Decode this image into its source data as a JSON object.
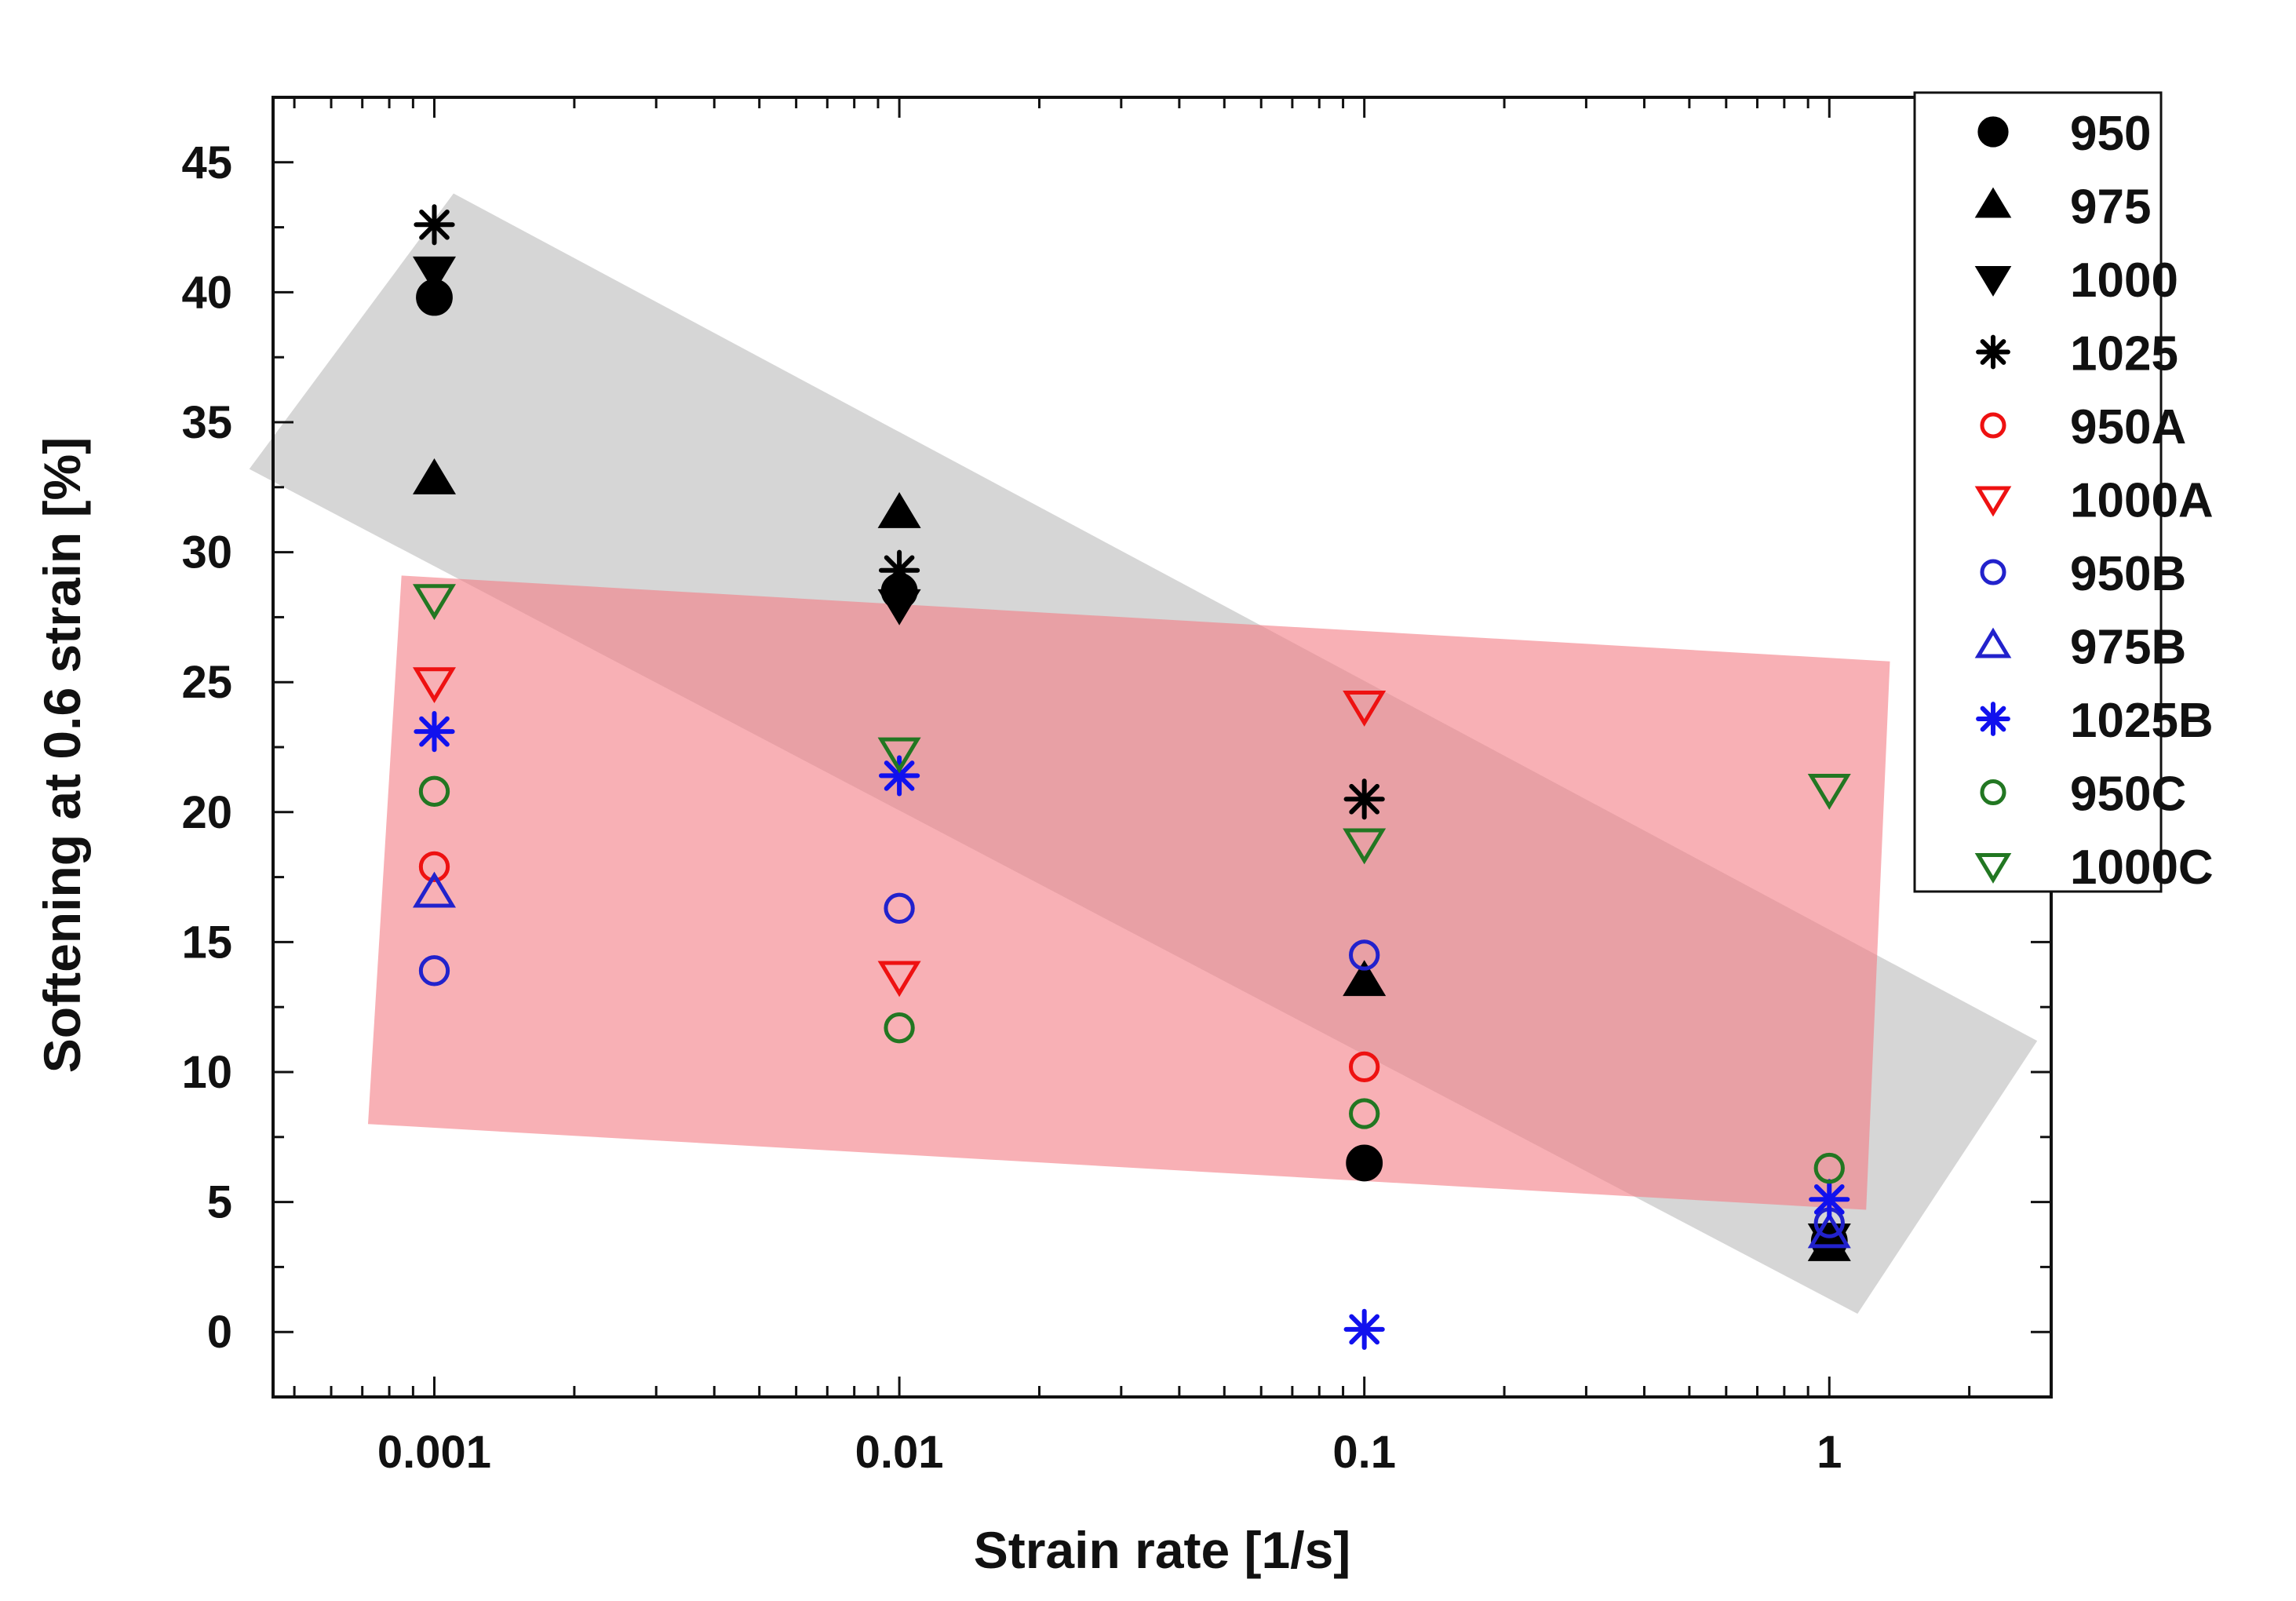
{
  "chart_data": {
    "type": "scatter",
    "title": "",
    "xlabel": "Strain rate [1/s]",
    "ylabel": "Softening at 0.6 strain [%]",
    "xscale": "log",
    "xlim": [
      0.00045,
      3
    ],
    "ylim": [
      -2.5,
      47.5
    ],
    "xticks": [
      {
        "value": 0.001,
        "label": "0.001"
      },
      {
        "value": 0.01,
        "label": "0.01"
      },
      {
        "value": 0.1,
        "label": "0.1"
      },
      {
        "value": 1,
        "label": "1"
      }
    ],
    "yticks": [
      {
        "value": 0,
        "label": "0"
      },
      {
        "value": 5,
        "label": "5"
      },
      {
        "value": 10,
        "label": "10"
      },
      {
        "value": 15,
        "label": "15"
      },
      {
        "value": 20,
        "label": "20"
      },
      {
        "value": 25,
        "label": "25"
      },
      {
        "value": 30,
        "label": "30"
      },
      {
        "value": 35,
        "label": "35"
      },
      {
        "value": 40,
        "label": "40"
      },
      {
        "value": 45,
        "label": "45"
      }
    ],
    "legend_position": "top-right",
    "series": [
      {
        "name": "950",
        "marker": "circle",
        "filled": true,
        "color": "#000000",
        "points": [
          {
            "x": 0.001,
            "y": 39.8
          },
          {
            "x": 0.01,
            "y": 28.5
          },
          {
            "x": 0.1,
            "y": 6.5
          },
          {
            "x": 1,
            "y": 3.5
          }
        ]
      },
      {
        "name": "975",
        "marker": "triangle-up",
        "filled": true,
        "color": "#000000",
        "points": [
          {
            "x": 0.001,
            "y": 32.8
          },
          {
            "x": 0.01,
            "y": 31.5
          },
          {
            "x": 0.1,
            "y": 13.5
          },
          {
            "x": 1,
            "y": 3.3
          }
        ]
      },
      {
        "name": "1000",
        "marker": "triangle-down",
        "filled": true,
        "color": "#000000",
        "points": [
          {
            "x": 0.001,
            "y": 40.8
          },
          {
            "x": 0.01,
            "y": 28.0
          },
          {
            "x": 1,
            "y": 3.6
          }
        ]
      },
      {
        "name": "1025",
        "marker": "asterisk",
        "filled": true,
        "color": "#000000",
        "points": [
          {
            "x": 0.001,
            "y": 42.6
          },
          {
            "x": 0.01,
            "y": 29.3
          },
          {
            "x": 0.1,
            "y": 20.5
          }
        ]
      },
      {
        "name": "950A",
        "marker": "circle",
        "filled": false,
        "color": "#ee1111",
        "points": [
          {
            "x": 0.001,
            "y": 17.9
          },
          {
            "x": 0.1,
            "y": 10.2
          }
        ]
      },
      {
        "name": "1000A",
        "marker": "triangle-down",
        "filled": false,
        "color": "#ee1111",
        "points": [
          {
            "x": 0.001,
            "y": 25.0
          },
          {
            "x": 0.01,
            "y": 13.7
          },
          {
            "x": 0.1,
            "y": 24.1
          }
        ]
      },
      {
        "name": "950B",
        "marker": "circle",
        "filled": false,
        "color": "#2222cc",
        "points": [
          {
            "x": 0.001,
            "y": 13.9
          },
          {
            "x": 0.01,
            "y": 16.3
          },
          {
            "x": 0.1,
            "y": 14.5
          },
          {
            "x": 1,
            "y": 4.2
          }
        ]
      },
      {
        "name": "975B",
        "marker": "triangle-up",
        "filled": false,
        "color": "#2222cc",
        "points": [
          {
            "x": 0.001,
            "y": 16.9
          },
          {
            "x": 1,
            "y": 3.8
          }
        ]
      },
      {
        "name": "1025B",
        "marker": "asterisk",
        "filled": true,
        "color": "#1111ee",
        "points": [
          {
            "x": 0.001,
            "y": 23.1
          },
          {
            "x": 0.01,
            "y": 21.4
          },
          {
            "x": 0.1,
            "y": 0.1
          },
          {
            "x": 1,
            "y": 5.1
          }
        ]
      },
      {
        "name": "950C",
        "marker": "circle",
        "filled": false,
        "color": "#227722",
        "points": [
          {
            "x": 0.001,
            "y": 20.8
          },
          {
            "x": 0.01,
            "y": 11.7
          },
          {
            "x": 0.1,
            "y": 8.4
          },
          {
            "x": 1,
            "y": 6.3
          }
        ]
      },
      {
        "name": "1000C",
        "marker": "triangle-down",
        "filled": false,
        "color": "#227722",
        "points": [
          {
            "x": 0.001,
            "y": 28.2
          },
          {
            "x": 0.01,
            "y": 22.3
          },
          {
            "x": 0.1,
            "y": 18.8
          },
          {
            "x": 1,
            "y": 20.9
          }
        ]
      }
    ],
    "bands": [
      {
        "name": "grey-trend-band",
        "color": "#b4b4b4",
        "opacity": 0.55,
        "corners": [
          {
            "x": 0.0004,
            "y": 33.2
          },
          {
            "x": 0.0011,
            "y": 43.8
          },
          {
            "x": 2.8,
            "y": 11.2
          },
          {
            "x": 1.15,
            "y": 0.7
          }
        ]
      },
      {
        "name": "red-trend-band",
        "color": "#f47c84",
        "opacity": 0.6,
        "corners": [
          {
            "x": 0.00085,
            "y": 29.1
          },
          {
            "x": 1.35,
            "y": 25.8
          },
          {
            "x": 1.2,
            "y": 4.7
          },
          {
            "x": 0.00072,
            "y": 8.0
          }
        ]
      }
    ]
  }
}
